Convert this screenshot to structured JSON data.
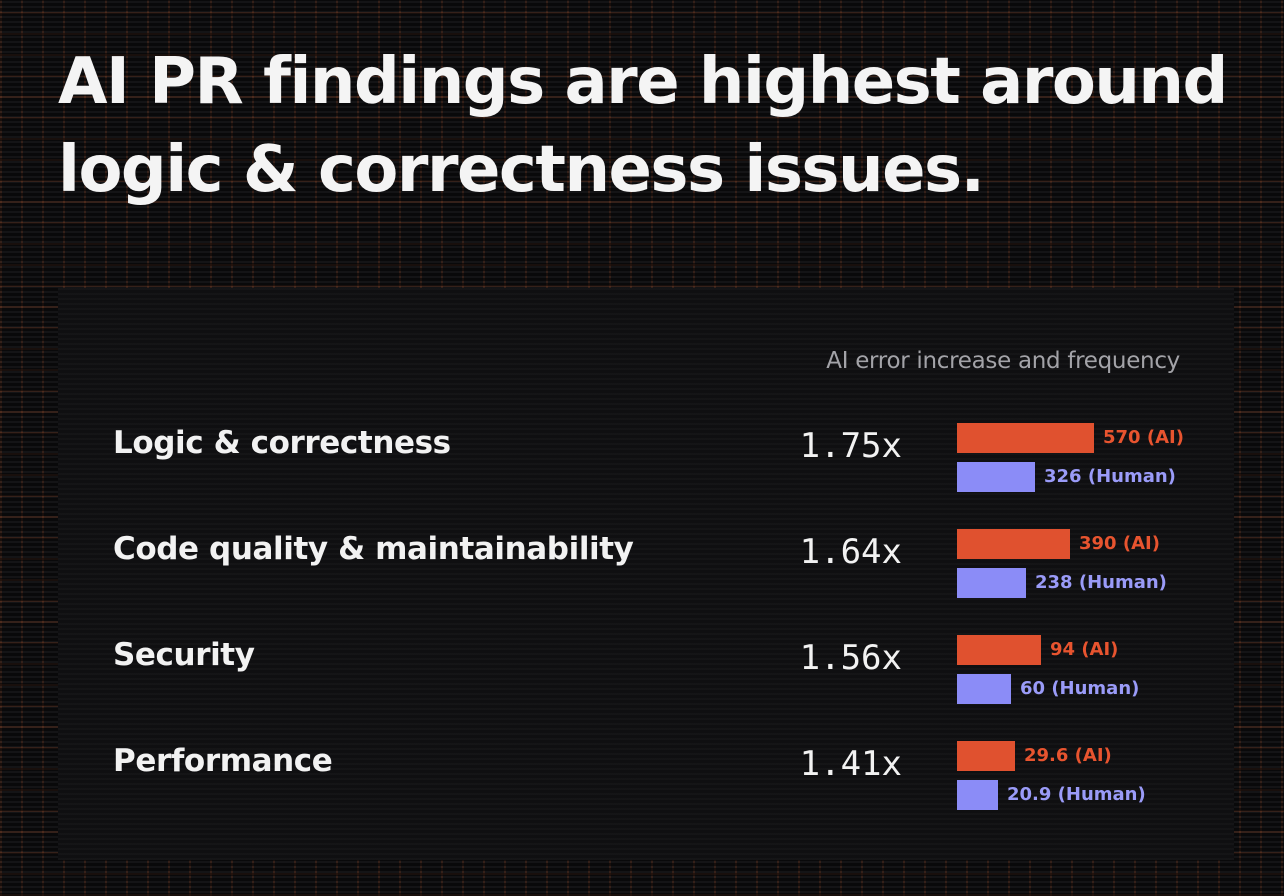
{
  "headline": "AI PR findings are highest around logic & correctness issues.",
  "colors": {
    "ai": "#e0512f",
    "human": "#8b8cf7",
    "background": "#141416"
  },
  "chart_data": {
    "type": "bar",
    "orientation": "horizontal",
    "title": "AI error increase and frequency",
    "categories": [
      "Logic & correctness",
      "Code quality & maintainability",
      "Security",
      "Performance"
    ],
    "multipliers": [
      "1.75x",
      "1.64x",
      "1.56x",
      "1.41x"
    ],
    "series": [
      {
        "values": [
          570,
          390,
          94,
          29.6
        ],
        "labels": [
          "570 (AI)",
          "390 (AI)",
          "94 (AI)",
          "29.6 (AI)"
        ],
        "color": "#e0512f"
      },
      {
        "values": [
          326,
          238,
          60,
          20.9
        ],
        "labels": [
          "326 (Human)",
          "238 (Human)",
          "60 (Human)",
          "20.9 (Human)"
        ],
        "color": "#8b8cf7"
      }
    ],
    "grid": false,
    "legend": "none"
  }
}
